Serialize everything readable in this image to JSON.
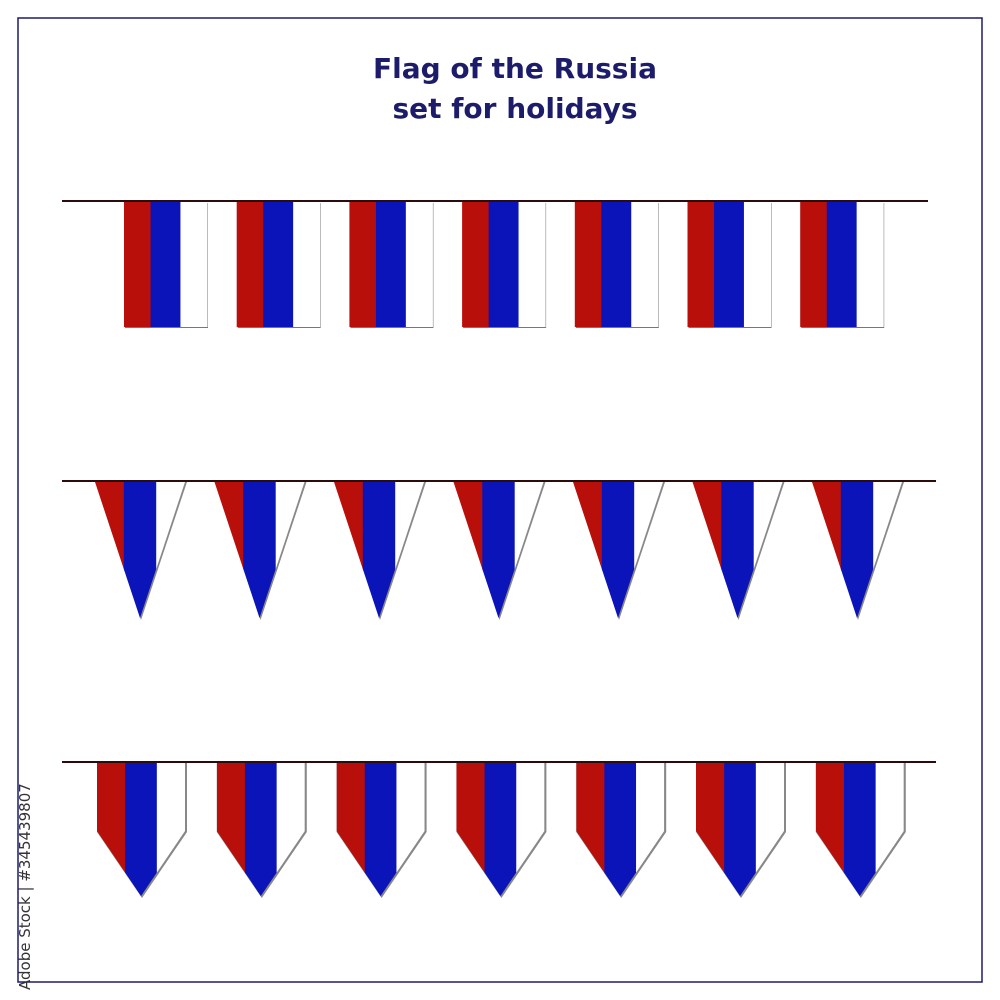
{
  "header": {
    "title_line1": "Flag of the Russia",
    "title_line2": "set for holidays"
  },
  "watermark": "Adobe Stock | #345439807"
}
